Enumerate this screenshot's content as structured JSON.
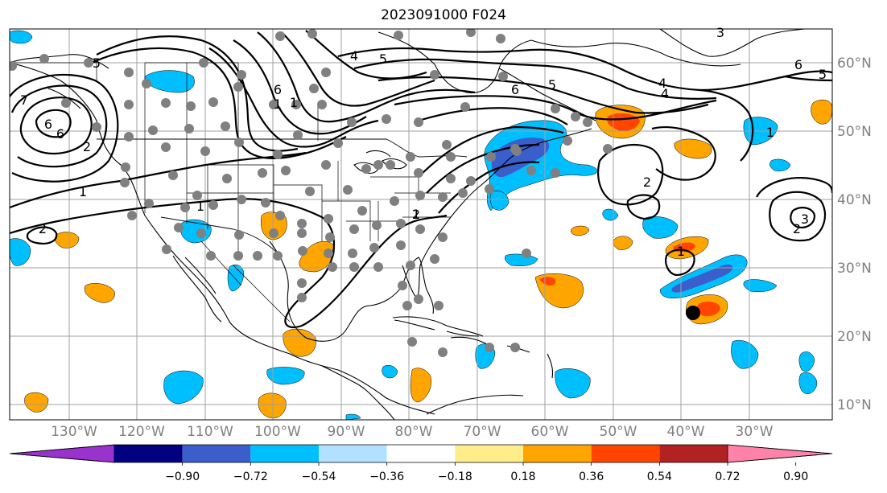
{
  "title": "2023091000 F024",
  "longitude_labels": [
    "130°W",
    "120°W",
    "110°W",
    "100°W",
    "90°W",
    "80°W",
    "70°W",
    "60°W",
    "50°W",
    "40°W",
    "30°W"
  ],
  "latitude_labels": [
    "60°N",
    "50°N",
    "40°N",
    "30°N",
    "20°N",
    "10°N"
  ],
  "colorbar": {
    "tick_labels": [
      "−0.90",
      "−0.72",
      "−0.54",
      "−0.36",
      "−0.18",
      "0.18",
      "0.36",
      "0.54",
      "0.72",
      "0.90"
    ],
    "colors": [
      "#9a32cd",
      "#000080",
      "#3a5fcd",
      "#00bfff",
      "#b0e2ff",
      "#ffffff",
      "#ffec8b",
      "#ffa500",
      "#ff4500",
      "#b22222",
      "#ff82ab"
    ]
  },
  "contour_labels": [
    "1",
    "2",
    "6",
    "2",
    "1",
    "1",
    "2",
    "4",
    "5",
    "6",
    "1",
    "1",
    "6",
    "5",
    "4",
    "6",
    "5",
    "4",
    "1",
    "2",
    "2",
    "3",
    "1",
    "6",
    "5",
    "3",
    "7"
  ],
  "shade_colors": {
    "light_blue": "#00bfff",
    "mid_blue": "#3a5fcd",
    "orange": "#ffa500",
    "red": "#ff4500",
    "dark_red": "#b22222"
  },
  "station_color": "#808080"
}
